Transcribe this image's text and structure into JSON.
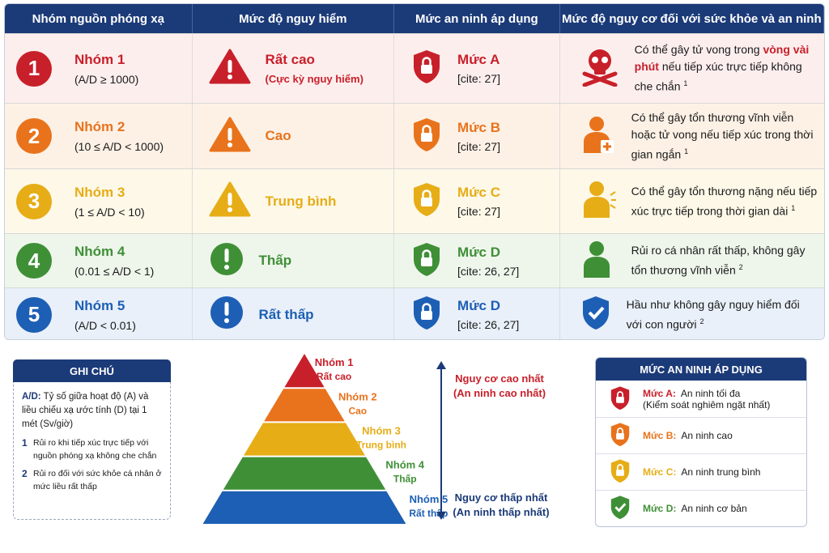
{
  "header": {
    "columns": [
      "Nhóm nguồn phóng xạ",
      "Mức độ nguy hiểm",
      "Mức an ninh áp dụng",
      "Mức độ nguy cơ đối với sức khỏe và an ninh"
    ]
  },
  "table": {
    "rows": [
      {
        "number": "1",
        "group": "Nhóm 1",
        "range": "(A/D ≥ 1000)",
        "danger": "Rất cao",
        "danger_sub": "(Cực kỳ nguy hiểm)",
        "level": "Mức A",
        "cite": "[cite: 27]",
        "health": [
          "Có thể gây tử vong trong ",
          "vòng vài phút",
          " nếu tiếp xúc trực tiếp không che chắn"
        ],
        "note": "1"
      },
      {
        "number": "2",
        "group": "Nhóm 2",
        "range": "(10 ≤ A/D < 1000)",
        "danger": "Cao",
        "level": "Mức B",
        "cite": "[cite: 27]",
        "health": [
          "Có thể gây tổn thương vĩnh viễn hoặc tử vong nếu tiếp xúc trong thời gian ngắn"
        ],
        "note": "1"
      },
      {
        "number": "3",
        "group": "Nhóm 3",
        "range": "(1 ≤ A/D < 10)",
        "danger": "Trung bình",
        "level": "Mức C",
        "cite": "[cite: 27]",
        "health": [
          "Có thể gây tổn thương nặng nếu tiếp xúc trực tiếp trong thời gian dài"
        ],
        "note": "1"
      },
      {
        "number": "4",
        "group": "Nhóm 4",
        "range": "(0.01 ≤ A/D < 1)",
        "danger": "Thấp",
        "level": "Mức D",
        "cite": "[cite: 26, 27]",
        "health": [
          "Rủi ro cá nhân rất thấp, không gây tổn thương vĩnh viễn"
        ],
        "note": "2"
      },
      {
        "number": "5",
        "group": "Nhóm 5",
        "range": "(A/D < 0.01)",
        "danger": "Rất thấp",
        "level": "Mức D",
        "cite": "[cite: 26, 27]",
        "health": [
          "Hầu như không gây nguy hiểm đối với con người"
        ],
        "note": "2"
      }
    ]
  },
  "notes": {
    "title": "GHI CHÚ",
    "term": "A/D:",
    "definition": "Tỷ số giữa hoạt độ (A) và liều chiếu xạ ước tính (D) tại 1 mét (Sv/giờ)",
    "items": [
      {
        "number": "1",
        "text": "Rủi ro khi tiếp xúc trực tiếp với nguồn phóng xạ không che chắn"
      },
      {
        "number": "2",
        "text": "Rủi ro đối với sức khỏe cá nhân ở mức liều rất thấp"
      }
    ]
  },
  "pyramid": {
    "levels": [
      {
        "group": "Nhóm 1",
        "label": "Rất cao"
      },
      {
        "group": "Nhóm 2",
        "label": "Cao"
      },
      {
        "group": "Nhóm 3",
        "label": "Trung bình"
      },
      {
        "group": "Nhóm 4",
        "label": "Thấp"
      },
      {
        "group": "Nhóm 5",
        "label": "Rất thấp"
      }
    ],
    "top": [
      "Nguy cơ cao nhất",
      "(An ninh cao nhất)"
    ],
    "bottom": [
      "Nguy cơ thấp nhất",
      "(An ninh thấp nhất)"
    ]
  },
  "legend": {
    "title": "MỨC AN NINH ÁP DỤNG",
    "items": [
      {
        "level": "Mức A:",
        "desc": "An ninh tối đa",
        "sub": "(Kiểm soát nghiêm ngặt nhất)"
      },
      {
        "level": "Mức B:",
        "desc": "An ninh cao"
      },
      {
        "level": "Mức C:",
        "desc": "An ninh trung bình"
      },
      {
        "level": "Mức D:",
        "desc": "An ninh cơ bản"
      }
    ]
  }
}
